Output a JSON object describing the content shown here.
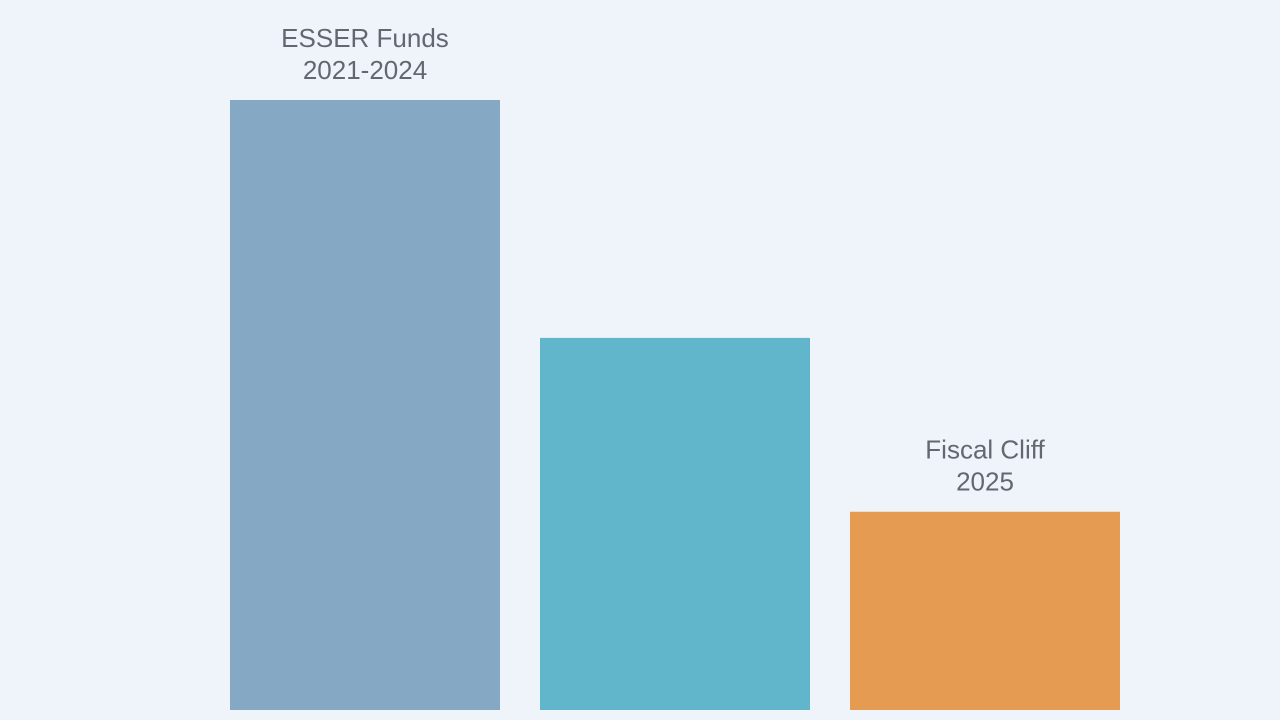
{
  "chart_data": {
    "type": "bar",
    "categories": [
      [
        "ESSER Funds",
        "2021-2024"
      ],
      null,
      [
        "Fiscal Cliff",
        "2025"
      ]
    ],
    "values": [
      100,
      61,
      32.5
    ],
    "colors": [
      "#85a9c4",
      "#62b6cb",
      "#e59b52"
    ]
  }
}
